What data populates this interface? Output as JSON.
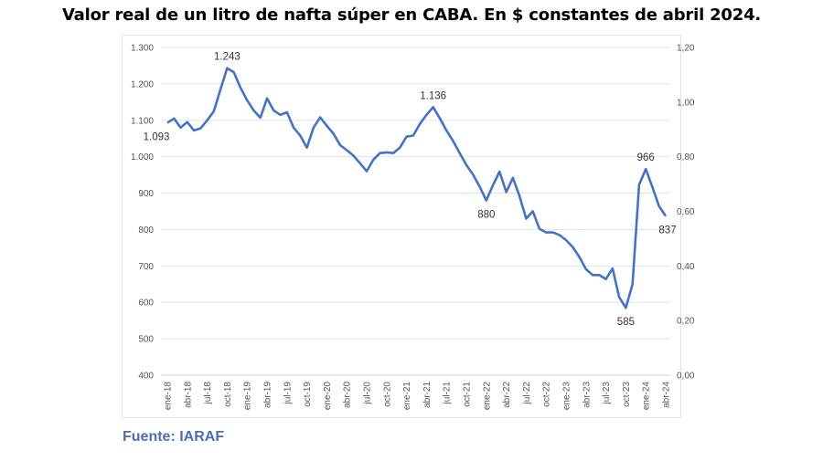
{
  "chart_data": {
    "type": "line",
    "title": "Valor real de un litro de nafta súper en CABA. En $ constantes de abril 2024.",
    "source": "Fuente: IARAF",
    "line_color": "#4472c4",
    "grid": true,
    "legend": "none",
    "ylim": [
      400,
      1300
    ],
    "y_ticks": [
      "1.300",
      "1.200",
      "1.100",
      "1.000",
      "900",
      "800",
      "700",
      "600",
      "500",
      "400"
    ],
    "y2lim": [
      0,
      1.2
    ],
    "y2_ticks": [
      "1,20",
      "1,00",
      "0,80",
      "0,60",
      "0,40",
      "0,20",
      "0,00"
    ],
    "x_start": "ene-18",
    "x_end": "abr-24",
    "x_tick_labels": [
      "ene-18",
      "abr-18",
      "jul-18",
      "oct-18",
      "ene-19",
      "abr-19",
      "jul-19",
      "oct-19",
      "ene-20",
      "abr-20",
      "jul-20",
      "oct-20",
      "ene-21",
      "abr-21",
      "jul-21",
      "oct-21",
      "ene-22",
      "abr-22",
      "jul-22",
      "oct-22",
      "ene-23",
      "abr-23",
      "jul-23",
      "oct-23",
      "ene-24",
      "abr-24"
    ],
    "series": [
      {
        "values": [
          1093,
          1105,
          1080,
          1095,
          1072,
          1078,
          1100,
          1125,
          1185,
          1243,
          1232,
          1190,
          1155,
          1127,
          1107,
          1160,
          1127,
          1115,
          1122,
          1080,
          1058,
          1025,
          1080,
          1108,
          1085,
          1063,
          1032,
          1018,
          1003,
          982,
          960,
          992,
          1010,
          1012,
          1010,
          1025,
          1055,
          1058,
          1090,
          1115,
          1136,
          1106,
          1072,
          1043,
          1010,
          977,
          951,
          918,
          880,
          922,
          959,
          903,
          942,
          892,
          830,
          850,
          802,
          792,
          792,
          785,
          771,
          752,
          725,
          691,
          675,
          675,
          664,
          693,
          614,
          585,
          650,
          923,
          966,
          916,
          864,
          837
        ]
      }
    ],
    "data_labels": [
      {
        "month": "ene-18",
        "text": "1.093",
        "pos": "below"
      },
      {
        "month": "oct-18",
        "text": "1.243",
        "pos": "above"
      },
      {
        "month": "may-21",
        "text": "1.136",
        "pos": "above"
      },
      {
        "month": "ene-22",
        "text": "880",
        "pos": "below"
      },
      {
        "month": "oct-23",
        "text": "585",
        "pos": "below"
      },
      {
        "month": "ene-24",
        "text": "966",
        "pos": "above"
      },
      {
        "month": "abr-24",
        "text": "837",
        "pos": "below"
      }
    ]
  }
}
